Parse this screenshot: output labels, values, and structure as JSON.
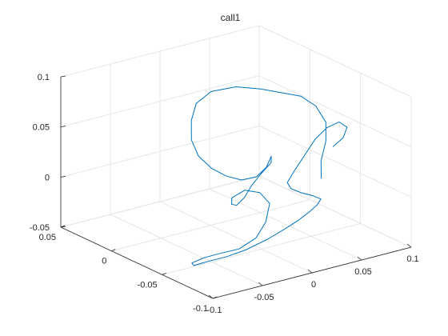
{
  "chart_data": {
    "type": "line",
    "projection": "3d",
    "title": "call1",
    "grid": true,
    "box": false,
    "series_color": "#0072BD",
    "axes": {
      "x": {
        "lim": [
          -0.1,
          0.1
        ],
        "ticks": [
          -0.1,
          -0.05,
          0,
          0.05,
          0.1
        ],
        "tick_labels": [
          "-0.1",
          "-0.05",
          "0",
          "0.05",
          "0.1"
        ]
      },
      "y": {
        "lim": [
          -0.1,
          0.05
        ],
        "ticks": [
          -0.1,
          -0.05,
          0,
          0.05
        ],
        "tick_labels": [
          "-0.1",
          "-0.05",
          "0",
          "0.05"
        ]
      },
      "z": {
        "lim": [
          -0.05,
          0.1
        ],
        "ticks": [
          -0.05,
          0,
          0.05,
          0.1
        ],
        "tick_labels": [
          "-0.05",
          "0",
          "0.05",
          "0.1"
        ]
      }
    },
    "series": [
      {
        "points": [
          [
            0.04,
            -0.07,
            0.02
          ],
          [
            0.05,
            -0.06,
            0.03
          ],
          [
            0.06,
            -0.055,
            0.045
          ],
          [
            0.065,
            -0.05,
            0.06
          ],
          [
            0.06,
            -0.045,
            0.075
          ],
          [
            0.05,
            -0.04,
            0.085
          ],
          [
            0.035,
            -0.035,
            0.09
          ],
          [
            0.02,
            -0.03,
            0.095
          ],
          [
            0.0,
            -0.025,
            0.1
          ],
          [
            -0.02,
            -0.02,
            0.098
          ],
          [
            -0.035,
            -0.02,
            0.09
          ],
          [
            -0.045,
            -0.025,
            0.078
          ],
          [
            -0.05,
            -0.03,
            0.062
          ],
          [
            -0.048,
            -0.035,
            0.048
          ],
          [
            -0.04,
            -0.04,
            0.036
          ],
          [
            -0.03,
            -0.045,
            0.028
          ],
          [
            -0.02,
            -0.05,
            0.024
          ],
          [
            -0.01,
            -0.055,
            0.027
          ],
          [
            0.0,
            -0.055,
            0.034
          ],
          [
            0.01,
            -0.05,
            0.04
          ],
          [
            0.015,
            -0.045,
            0.03
          ],
          [
            0.01,
            -0.04,
            0.018
          ],
          [
            0.0,
            -0.04,
            0.008
          ],
          [
            -0.012,
            -0.045,
            0.002
          ],
          [
            -0.025,
            -0.05,
            0.0
          ],
          [
            -0.035,
            -0.055,
            0.006
          ],
          [
            -0.04,
            -0.06,
            0.016
          ],
          [
            -0.032,
            -0.065,
            0.024
          ],
          [
            -0.02,
            -0.068,
            0.02
          ],
          [
            -0.012,
            -0.07,
            0.008
          ],
          [
            -0.018,
            -0.072,
            -0.008
          ],
          [
            -0.03,
            -0.074,
            -0.02
          ],
          [
            -0.045,
            -0.072,
            -0.028
          ],
          [
            -0.058,
            -0.066,
            -0.032
          ],
          [
            -0.066,
            -0.058,
            -0.038
          ],
          [
            -0.07,
            -0.05,
            -0.046
          ],
          [
            -0.064,
            -0.046,
            -0.052
          ],
          [
            -0.052,
            -0.048,
            -0.05
          ],
          [
            -0.04,
            -0.055,
            -0.045
          ],
          [
            -0.028,
            -0.062,
            -0.038
          ],
          [
            -0.01,
            -0.066,
            -0.03
          ],
          [
            0.008,
            -0.066,
            -0.024
          ],
          [
            0.024,
            -0.064,
            -0.02
          ],
          [
            0.038,
            -0.06,
            -0.018
          ],
          [
            0.05,
            -0.056,
            -0.016
          ],
          [
            0.058,
            -0.052,
            -0.014
          ],
          [
            0.052,
            -0.05,
            -0.01
          ],
          [
            0.04,
            -0.05,
            -0.004
          ],
          [
            0.028,
            -0.052,
            0.004
          ],
          [
            0.02,
            -0.056,
            0.014
          ],
          [
            0.024,
            -0.06,
            0.028
          ],
          [
            0.032,
            -0.062,
            0.042
          ],
          [
            0.04,
            -0.064,
            0.056
          ],
          [
            0.05,
            -0.066,
            0.066
          ],
          [
            0.06,
            -0.068,
            0.07
          ],
          [
            0.066,
            -0.07,
            0.064
          ],
          [
            0.06,
            -0.072,
            0.056
          ],
          [
            0.05,
            -0.072,
            0.05
          ]
        ]
      }
    ]
  }
}
